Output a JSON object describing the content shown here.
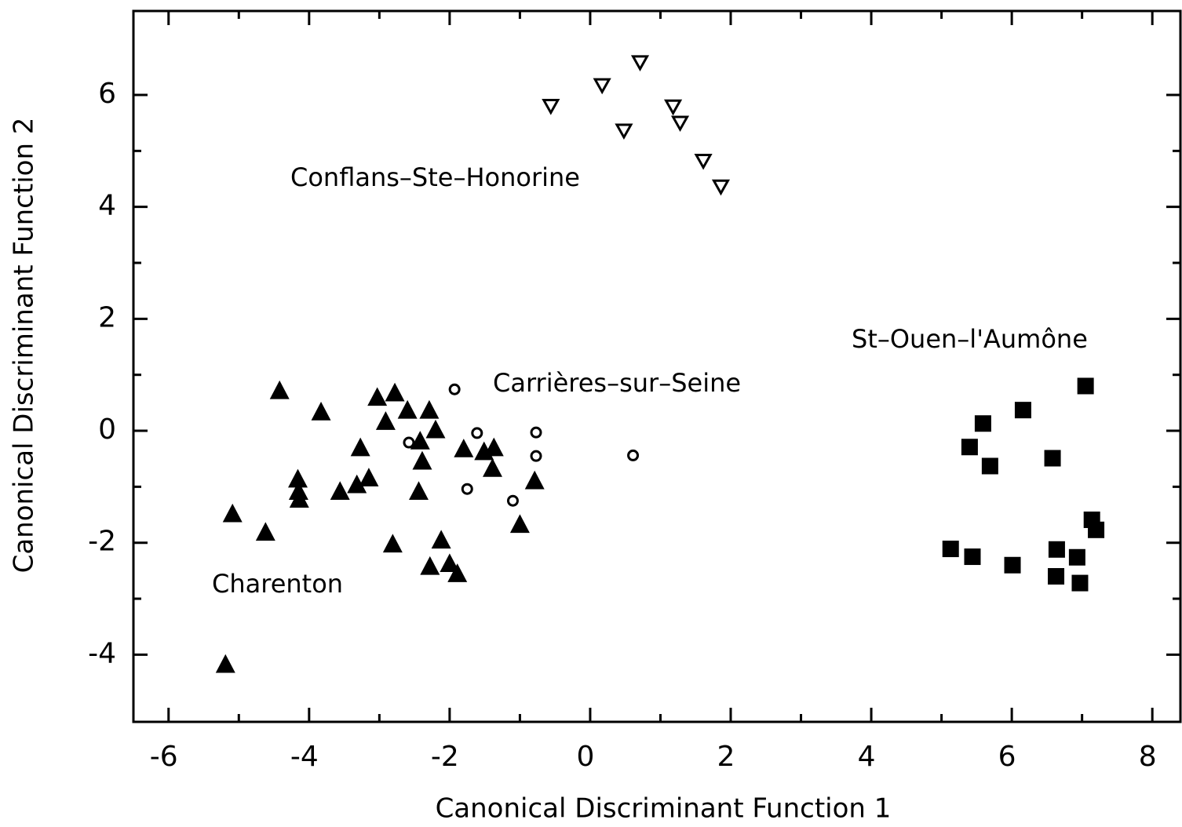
{
  "chart_data": {
    "type": "scatter",
    "xlabel": "Canonical Discriminant Function 1",
    "ylabel": "Canonical Discriminant Function 2",
    "xlim": [
      -6.5,
      8.4
    ],
    "ylim": [
      -5.2,
      7.5
    ],
    "xticks": [
      -6,
      -4,
      -2,
      0,
      2,
      4,
      6,
      8
    ],
    "yticks": [
      -4,
      -2,
      0,
      2,
      4,
      6
    ],
    "series": [
      {
        "name": "Charenton",
        "color": "#000000",
        "marker": "triangle-up",
        "filled": true,
        "x": [
          -4.42,
          -3.83,
          -3.03,
          -2.78,
          -2.91,
          -2.6,
          -2.29,
          -2.2,
          -2.42,
          -2.39,
          -3.27,
          -3.15,
          -3.32,
          -3.56,
          -4.16,
          -4.15,
          -4.14,
          -5.09,
          -4.62,
          -5.19,
          -2.81,
          -2.44,
          -2.12,
          -2.28,
          -2.0,
          -1.89,
          -1.8,
          -1.51,
          -1.37,
          -1.39,
          -0.79,
          -1.0
        ],
        "values": [
          0.7,
          0.32,
          0.58,
          0.66,
          0.15,
          0.35,
          0.35,
          0.0,
          -0.2,
          -0.56,
          -0.32,
          -0.86,
          -0.98,
          -1.1,
          -0.88,
          -1.1,
          -1.24,
          -1.5,
          -1.83,
          -4.19,
          -2.04,
          -1.1,
          -1.97,
          -2.44,
          -2.39,
          -2.57,
          -0.34,
          -0.39,
          -0.32,
          -0.69,
          -0.91,
          -1.69
        ]
      },
      {
        "name": "Carrières–sur–Seine",
        "color": "#000000",
        "marker": "circle",
        "filled": false,
        "x": [
          -1.93,
          -1.61,
          -2.58,
          -0.77,
          -0.77,
          -1.75,
          -1.1,
          0.61
        ],
        "values": [
          0.74,
          -0.04,
          -0.21,
          -0.03,
          -0.45,
          -1.04,
          -1.25,
          -0.44
        ]
      },
      {
        "name": "Conflans–Ste–Honorine",
        "color": "#000000",
        "marker": "triangle-down",
        "filled": false,
        "x": [
          -0.56,
          0.17,
          0.71,
          0.48,
          1.18,
          1.28,
          1.61,
          1.86
        ],
        "values": [
          5.81,
          6.18,
          6.59,
          5.37,
          5.8,
          5.51,
          4.83,
          4.37
        ]
      },
      {
        "name": "St–Ouen–l'Aumône",
        "color": "#000000",
        "marker": "square",
        "filled": true,
        "x": [
          7.05,
          6.16,
          5.59,
          5.4,
          5.69,
          6.58,
          7.14,
          7.2,
          5.13,
          5.44,
          6.01,
          6.64,
          6.93,
          6.63,
          6.97
        ],
        "values": [
          0.8,
          0.37,
          0.13,
          -0.29,
          -0.63,
          -0.49,
          -1.59,
          -1.77,
          -2.11,
          -2.25,
          -2.4,
          -2.12,
          -2.26,
          -2.6,
          -2.72
        ]
      }
    ]
  }
}
